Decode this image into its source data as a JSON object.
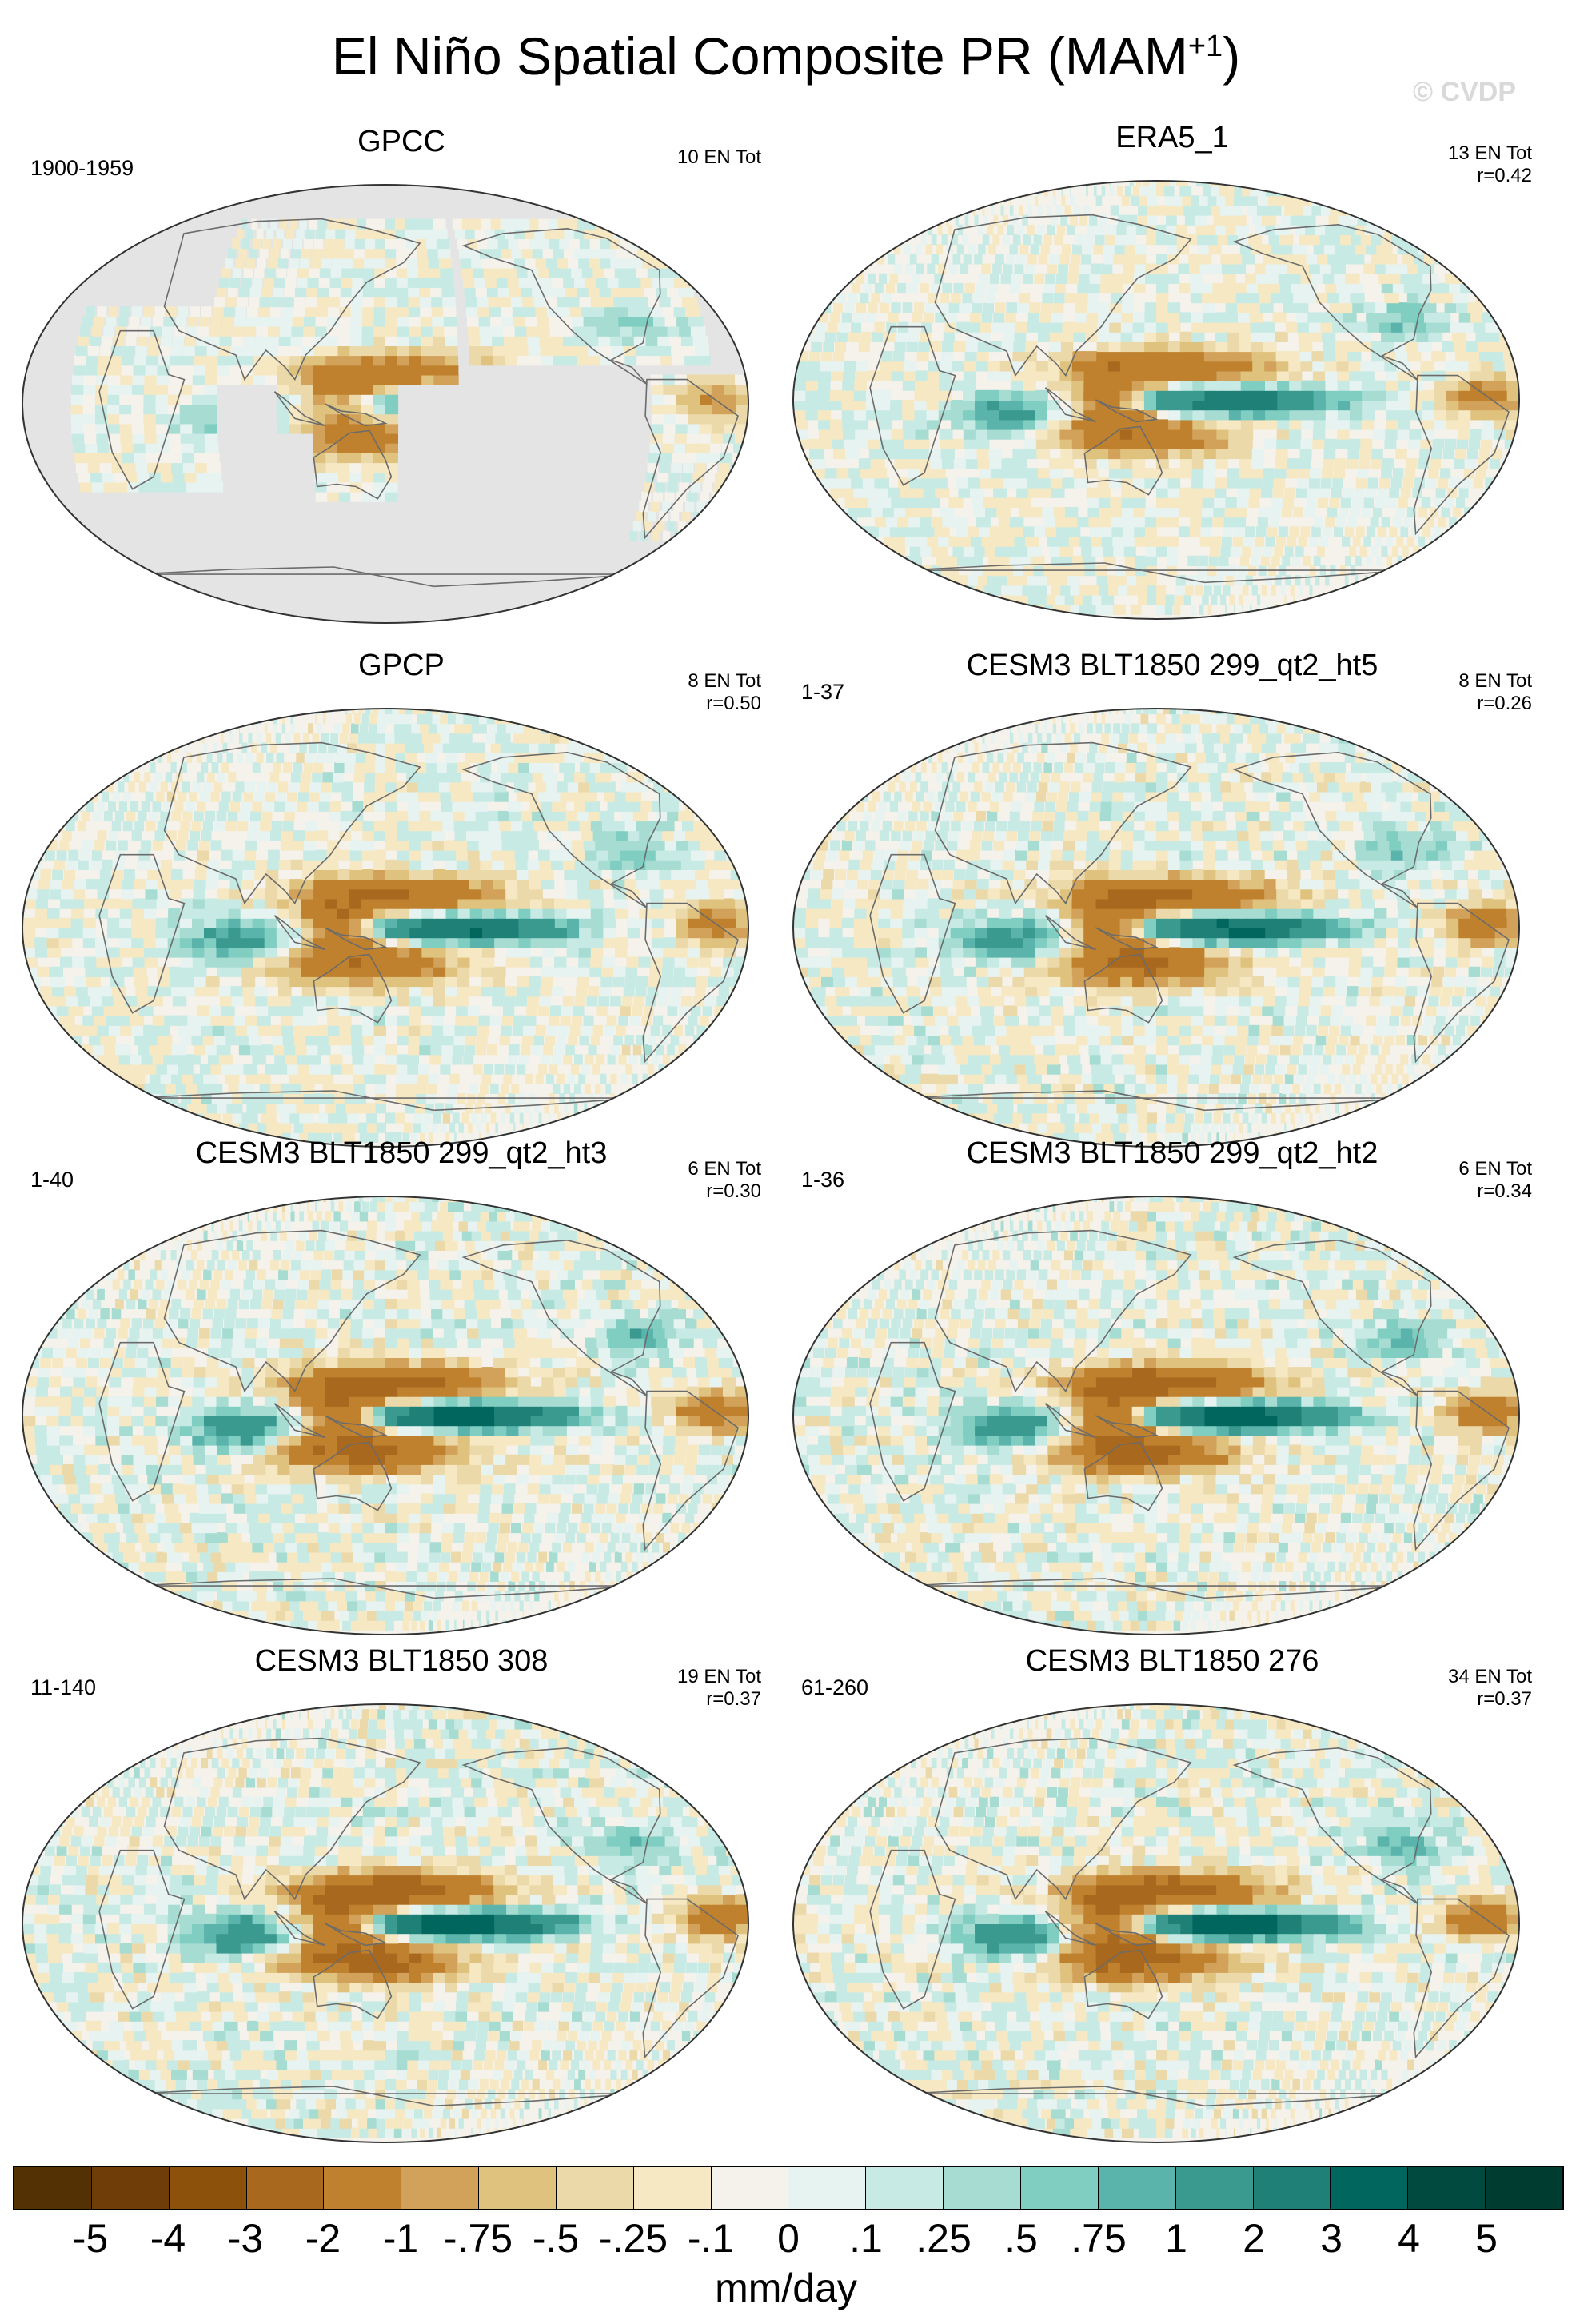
{
  "title": {
    "text": "El Niño Spatial Composite PR (MAM",
    "superscript": "+1",
    "suffix": ")"
  },
  "watermark": "© CVDP",
  "chart_data": {
    "type": "heatmap",
    "projection": "robinson, pacific-centered",
    "panels": [
      {
        "title": "GPCC",
        "period": "1900-1959",
        "stats": "10 EN Tot",
        "land_only": true,
        "pattern_strength": 0.55
      },
      {
        "title": "ERA5_1",
        "period": "",
        "stats": "13 EN Tot\nr=0.42",
        "land_only": false,
        "pattern_strength": 0.75
      },
      {
        "title": "GPCP",
        "period": "",
        "stats": "8 EN Tot\nr=0.50",
        "land_only": false,
        "pattern_strength": 0.8
      },
      {
        "title": "CESM3 BLT1850 299_qt2_ht5",
        "period": "1-37",
        "stats": "8 EN Tot\nr=0.26",
        "land_only": false,
        "pattern_strength": 0.9
      },
      {
        "title": "CESM3 BLT1850 299_qt2_ht3",
        "period": "1-40",
        "stats": "6 EN Tot\nr=0.30",
        "land_only": false,
        "pattern_strength": 1.0
      },
      {
        "title": "CESM3 BLT1850 299_qt2_ht2",
        "period": "1-36",
        "stats": "6 EN Tot\nr=0.34",
        "land_only": false,
        "pattern_strength": 1.0
      },
      {
        "title": "CESM3 BLT1850 308",
        "period": "11-140",
        "stats": "19 EN Tot\nr=0.37",
        "land_only": false,
        "pattern_strength": 1.0
      },
      {
        "title": "CESM3 BLT1850 276",
        "period": "61-260",
        "stats": "34 EN Tot\nr=0.37",
        "land_only": false,
        "pattern_strength": 1.0
      }
    ],
    "colorbar": {
      "units": "mm/day",
      "ticks": [
        "-5",
        "-4",
        "-3",
        "-2",
        "-1",
        "-.75",
        "-.5",
        "-.25",
        "-.1",
        "0",
        ".1",
        ".25",
        ".5",
        ".75",
        "1",
        "2",
        "3",
        "4",
        "5"
      ],
      "colors": [
        "#543005",
        "#6f3d08",
        "#8c510a",
        "#a8681e",
        "#bf812d",
        "#d2a25a",
        "#dfc27d",
        "#ecd9aa",
        "#f6e8c3",
        "#f5f2ec",
        "#e6f3f1",
        "#c7eae5",
        "#a7dcd3",
        "#80cdc1",
        "#5ab4ac",
        "#3a9a90",
        "#1f8078",
        "#01665e",
        "#004a40",
        "#003c30"
      ]
    }
  }
}
